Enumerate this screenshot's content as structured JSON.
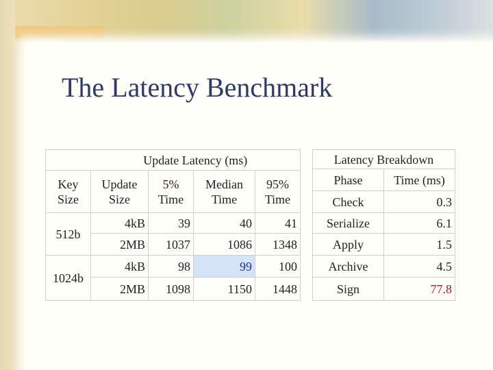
{
  "title": "The Latency Benchmark",
  "update_table": {
    "caption": "Update Latency (ms)",
    "headers": [
      "Key Size",
      "Update Size",
      "5% Time",
      "Median Time",
      "95% Time"
    ],
    "groups": [
      {
        "key": "512b",
        "rows": [
          [
            "4kB",
            39,
            40,
            41
          ],
          [
            "2MB",
            1037,
            1086,
            1348
          ]
        ]
      },
      {
        "key": "1024b",
        "rows": [
          [
            "4kB",
            98,
            99,
            100
          ],
          [
            "2MB",
            1098,
            1150,
            1448
          ]
        ]
      }
    ]
  },
  "breakdown_table": {
    "caption": "Latency Breakdown",
    "headers": [
      "Phase",
      "Time (ms)"
    ],
    "rows": [
      [
        "Check",
        0.3
      ],
      [
        "Serialize",
        6.1
      ],
      [
        "Apply",
        1.5
      ],
      [
        "Archive",
        4.5
      ],
      [
        "Sign",
        77.8
      ]
    ]
  }
}
